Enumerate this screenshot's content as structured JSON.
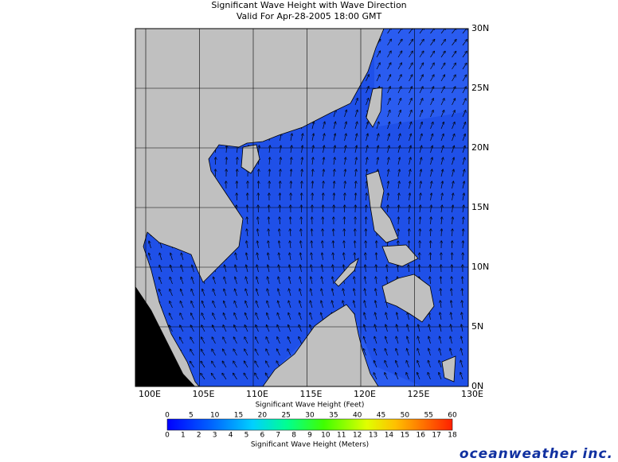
{
  "header": {
    "title": "Significant Wave Height with Wave Direction",
    "subtitle": "Valid For Apr-28-2005 18:00 GMT"
  },
  "map": {
    "lon_labels": [
      "100E",
      "105E",
      "110E",
      "115E",
      "120E",
      "125E",
      "130E"
    ],
    "lat_labels": [
      "30N",
      "25N",
      "20N",
      "15N",
      "10N",
      "5N",
      "0N"
    ]
  },
  "colorbar": {
    "feet_label": "Significant Wave Height (Feet)",
    "feet_ticks": [
      0,
      5,
      10,
      15,
      20,
      25,
      30,
      35,
      40,
      45,
      50,
      55,
      60
    ],
    "meter_label": "Significant Wave Height (Meters)",
    "meter_ticks": [
      0,
      1,
      2,
      3,
      4,
      5,
      6,
      7,
      8,
      9,
      10,
      11,
      12,
      13,
      14,
      15,
      16,
      17,
      18
    ]
  },
  "logo": "oceanweather inc."
}
